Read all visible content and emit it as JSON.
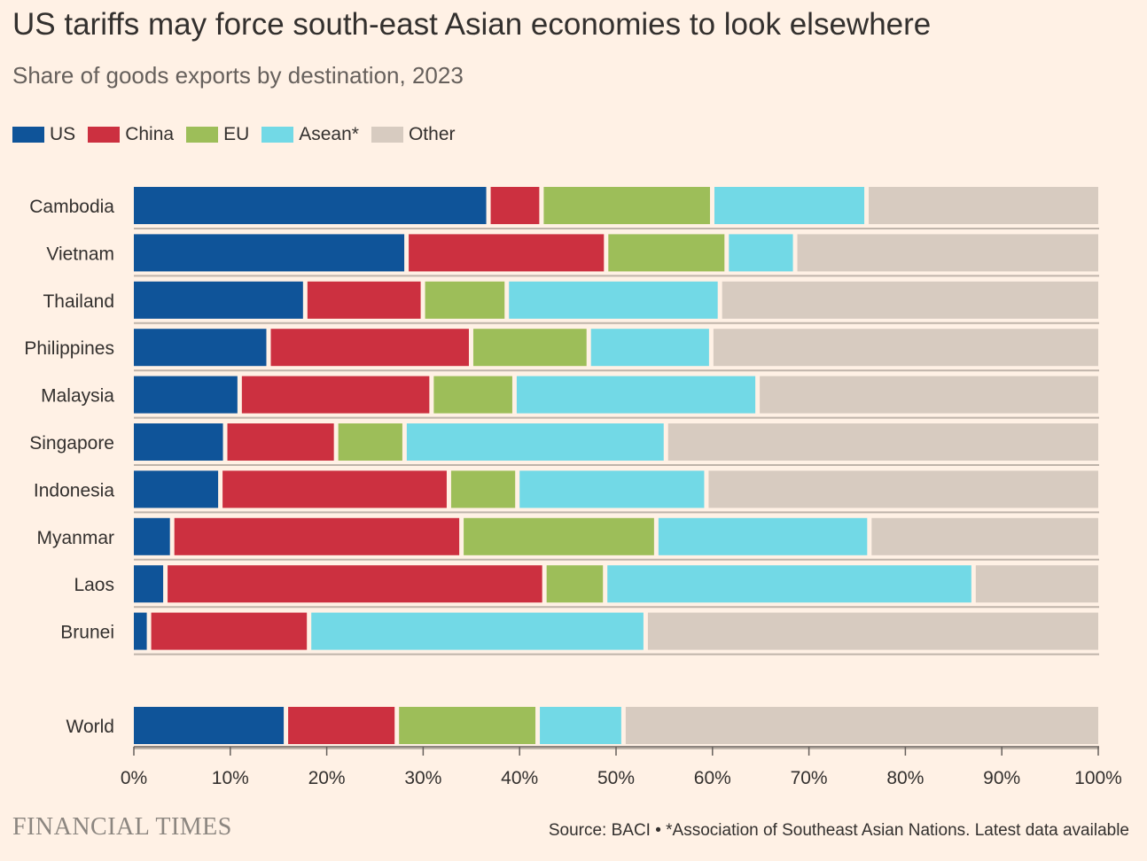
{
  "header": {
    "title": "US tariffs may force south-east Asian economies to look elsewhere",
    "subtitle": "Share of goods exports by destination, 2023"
  },
  "footer": {
    "brand": "FINANCIAL TIMES",
    "source": "Source: BACI • *Association of Southeast Asian Nations. Latest data available"
  },
  "colors": {
    "US": "#0F5499",
    "China": "#CC3040",
    "EU": "#9DBE59",
    "Asean*": "#72D9E6",
    "Other": "#D7CBC0",
    "background": "#FFF1E5",
    "gridline": "#BFB4AA"
  },
  "chart_data": {
    "type": "bar",
    "orientation": "horizontal",
    "stacked": true,
    "title": "US tariffs may force south-east Asian economies to look elsewhere",
    "subtitle": "Share of goods exports by destination, 2023",
    "xlim": [
      0,
      100
    ],
    "x_ticks": [
      "0%",
      "10%",
      "20%",
      "30%",
      "40%",
      "50%",
      "60%",
      "70%",
      "80%",
      "90%",
      "100%"
    ],
    "legend_position": "top-left",
    "categories": [
      "Cambodia",
      "Vietnam",
      "Thailand",
      "Philippines",
      "Malaysia",
      "Singapore",
      "Indonesia",
      "Myanmar",
      "Laos",
      "Brunei",
      "World"
    ],
    "series": [
      {
        "name": "US",
        "values": [
          37,
          28.5,
          18,
          14.2,
          11.2,
          9.7,
          9.2,
          4.2,
          3.5,
          1.8,
          16
        ]
      },
      {
        "name": "China",
        "values": [
          5.5,
          20.7,
          12.2,
          21,
          19.9,
          11.5,
          23.7,
          30,
          39.3,
          16.6,
          11.5
        ]
      },
      {
        "name": "EU",
        "values": [
          17.7,
          12.5,
          8.7,
          12.2,
          8.6,
          7.1,
          7.1,
          20.2,
          6.3,
          0,
          14.6
        ]
      },
      {
        "name": "Asean*",
        "values": [
          16,
          7.1,
          22.1,
          12.7,
          25.2,
          27.1,
          19.6,
          22.1,
          38.2,
          34.9,
          8.9
        ]
      },
      {
        "name": "Other",
        "values": [
          23.8,
          31.2,
          39,
          39.9,
          35.1,
          44.6,
          40.4,
          23.5,
          12.7,
          46.7,
          49
        ]
      }
    ]
  }
}
